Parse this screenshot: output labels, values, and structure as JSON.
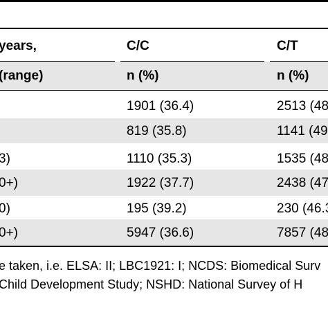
{
  "table": {
    "columns": {
      "col1": {
        "header": "years,",
        "subheader": "(range)"
      },
      "col2": {
        "header": "C/C",
        "subheader": "n (%)"
      },
      "col3": {
        "header": "C/T",
        "subheader": "n (%)"
      }
    },
    "rows": [
      {
        "label": "",
        "cc": "1901 (36.4)",
        "ct": "2513 (48"
      },
      {
        "label": "",
        "cc": "819 (35.8)",
        "ct": "1141 (49"
      },
      {
        "label": "3)",
        "cc": "1110 (35.3)",
        "ct": "1535 (48"
      },
      {
        "label": "0+)",
        "cc": "1922 (37.7)",
        "ct": "2438 (47"
      },
      {
        "label": "0)",
        "cc": "195 (39.2)",
        "ct": "230 (46.3"
      },
      {
        "label": "0+)",
        "cc": "5947 (36.6)",
        "ct": "7857 (48"
      }
    ]
  },
  "footnote": {
    "line1": "e taken, i.e. ELSA: II; LBC1921: I; NCDS: Biomedical Surv",
    "line2": "Child Development Study; NSHD: National Survey of H"
  },
  "colors": {
    "band": "#e6e6e6",
    "rule": "#000000",
    "text": "#000000"
  }
}
